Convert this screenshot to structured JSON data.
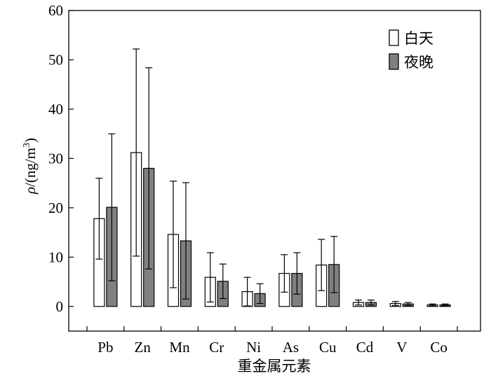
{
  "chart_data": {
    "type": "bar",
    "categories": [
      "Pb",
      "Zn",
      "Mn",
      "Cr",
      "Ni",
      "As",
      "Cu",
      "Cd",
      "V",
      "Co"
    ],
    "series": [
      {
        "name": "白天",
        "values": [
          17.8,
          31.2,
          14.6,
          5.9,
          3.0,
          6.7,
          8.4,
          0.8,
          0.6,
          0.3
        ],
        "error": [
          8.2,
          21.0,
          10.8,
          5.0,
          2.9,
          3.8,
          5.2,
          0.5,
          0.4,
          0.2
        ],
        "color": "#ffffff"
      },
      {
        "name": "夜晚",
        "values": [
          20.1,
          28.0,
          13.3,
          5.1,
          2.6,
          6.7,
          8.5,
          0.8,
          0.5,
          0.3
        ],
        "error": [
          14.9,
          20.4,
          11.8,
          3.5,
          2.0,
          4.2,
          5.7,
          0.5,
          0.3,
          0.2
        ],
        "color": "#808080"
      }
    ],
    "ylim": [
      -5,
      60
    ],
    "yticks": [
      "0",
      "10",
      "20",
      "30",
      "40",
      "50",
      "60"
    ],
    "xlabel": "重金属元素",
    "ylabel_prefix": "ρ",
    "ylabel_main": "/(ng/m",
    "ylabel_sup": "3",
    "ylabel_close": ")",
    "legend_position": "top-right",
    "grid": false
  }
}
